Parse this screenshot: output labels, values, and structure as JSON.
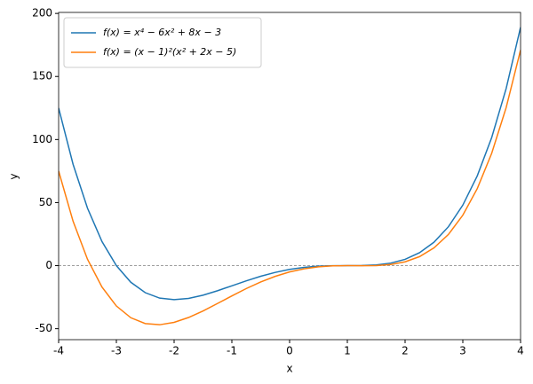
{
  "chart_data": {
    "type": "line",
    "x_label": "x",
    "y_label": "y",
    "x": [
      -4,
      -3.75,
      -3.5,
      -3.25,
      -3,
      -2.75,
      -2.5,
      -2.25,
      -2,
      -1.75,
      -1.5,
      -1.25,
      -1,
      -0.75,
      -0.5,
      -0.25,
      0,
      0.25,
      0.5,
      0.75,
      1,
      1.25,
      1.5,
      1.75,
      2,
      2.25,
      2.5,
      2.75,
      3,
      3.25,
      3.5,
      3.75,
      4
    ],
    "series": [
      {
        "name": "f(x) = x⁴ − 6x² + 8x − 3",
        "color": "#1f77b4",
        "values": [
          125,
          80.38,
          45.56,
          19.19,
          0,
          -13.18,
          -21.44,
          -25.75,
          -27,
          -26,
          -23.44,
          -19.93,
          -16,
          -12.06,
          -8.44,
          -5.37,
          -3,
          -1.37,
          -0.44,
          -0.06,
          0,
          0.07,
          0.56,
          2,
          5,
          10.25,
          18.56,
          30.82,
          48,
          71.19,
          101.56,
          140.38,
          189
        ]
      },
      {
        "name": "f(x) = (x − 1)²(x² + 2x − 5)",
        "color": "#ff7f0e",
        "values": [
          75,
          35.25,
          5.06,
          -16.93,
          -32,
          -41.31,
          -45.94,
          -46.87,
          -45,
          -41.12,
          -35.94,
          -30.06,
          -24,
          -18.18,
          -12.94,
          -8.5,
          -5,
          -2.5,
          -0.94,
          -0.18,
          0,
          -0.06,
          0.06,
          0.88,
          3,
          7.13,
          14.06,
          24.69,
          40,
          61.07,
          89.06,
          125.25,
          171
        ]
      }
    ],
    "xlim": [
      -4,
      4
    ],
    "xticks": [
      -4,
      -3,
      -2,
      -1,
      0,
      1,
      2,
      3,
      4
    ],
    "ylim": [
      -58.7,
      200.8
    ],
    "yticks": [
      -50,
      0,
      50,
      100,
      150,
      200
    ],
    "hline": 0,
    "hline_color": "#808080",
    "legend": "upper left",
    "grid": false
  }
}
